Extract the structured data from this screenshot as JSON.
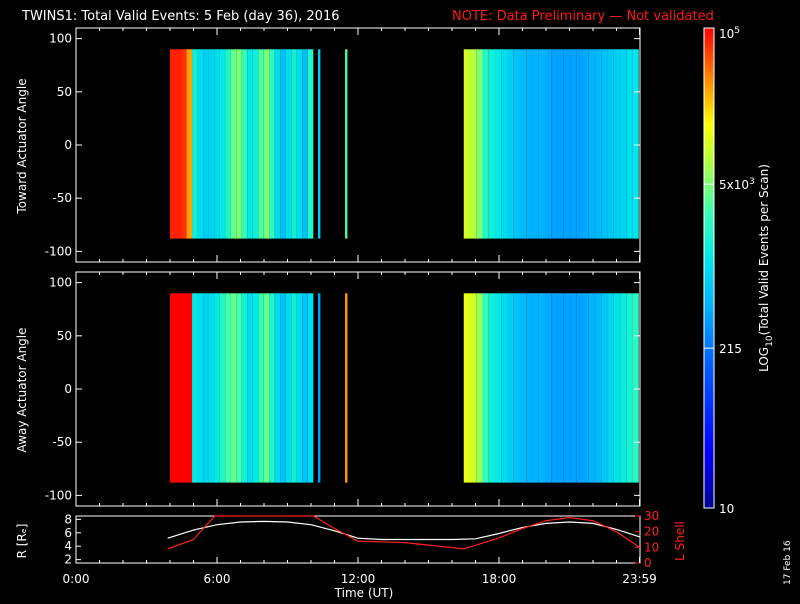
{
  "title": "TWINS1: Total Valid Events:  5 Feb (day  36), 2016",
  "note": "NOTE: Data Preliminary — Not validated",
  "stamp": "17 Feb 16",
  "colors": {
    "note": "#ff1a1a",
    "axis": "#ffffff",
    "background": "#000000",
    "r_line": "#ffffff",
    "lshell_line": "#ff2020"
  },
  "chart_data": [
    {
      "type": "heatmap",
      "ylabel": "Toward Actuator Angle",
      "ylim": [
        -110,
        110
      ],
      "yticks": [
        "100",
        "50",
        "0",
        "-50",
        "-100"
      ],
      "xlim": [
        0,
        24
      ],
      "segments": [
        {
          "t0": 4.0,
          "t1": 10.1,
          "level": [
            4.9,
            4.9,
            4.85,
            4.5,
            3.2,
            3.0,
            2.9,
            2.95,
            3.0,
            3.1,
            3.3,
            3.6,
            3.7,
            3.4,
            3.1,
            3.2,
            3.5,
            3.7,
            3.4,
            3.0,
            2.8,
            3.0,
            3.2,
            3.0,
            2.8,
            3.3
          ]
        },
        {
          "t0": 10.3,
          "t1": 10.4,
          "level": [
            2.9
          ]
        },
        {
          "t0": 11.45,
          "t1": 11.55,
          "level": [
            3.5
          ]
        },
        {
          "t0": 16.5,
          "t1": 23.95,
          "level": [
            4.0,
            3.9,
            3.7,
            3.3,
            3.2,
            3.1,
            3.0,
            2.9,
            2.8,
            2.75,
            2.7,
            2.7,
            2.7,
            2.65,
            2.6,
            2.6,
            2.6,
            2.6,
            2.6,
            2.65,
            2.7,
            2.75,
            2.8,
            2.85,
            2.9,
            2.95,
            3.0,
            3.05
          ]
        }
      ],
      "angle_range": [
        -88,
        90
      ]
    },
    {
      "type": "heatmap",
      "ylabel": "Away Actuator Angle",
      "ylim": [
        -110,
        110
      ],
      "yticks": [
        "100",
        "50",
        "0",
        "-50",
        "-100"
      ],
      "xlim": [
        0,
        24
      ],
      "segments": [
        {
          "t0": 4.0,
          "t1": 10.1,
          "level": [
            5.3,
            5.3,
            5.3,
            5.2,
            3.1,
            3.0,
            2.95,
            3.0,
            3.1,
            3.3,
            3.5,
            3.6,
            3.5,
            3.2,
            3.0,
            3.1,
            3.4,
            3.6,
            3.3,
            3.0,
            2.8,
            3.0,
            3.2,
            3.0,
            2.8,
            3.0
          ]
        },
        {
          "t0": 10.3,
          "t1": 10.4,
          "level": [
            2.6
          ]
        },
        {
          "t0": 11.45,
          "t1": 11.55,
          "level": [
            4.5
          ]
        },
        {
          "t0": 16.5,
          "t1": 23.95,
          "level": [
            4.1,
            4.0,
            3.8,
            3.4,
            3.2,
            3.1,
            3.0,
            2.9,
            2.8,
            2.75,
            2.7,
            2.7,
            2.7,
            2.65,
            2.6,
            2.6,
            2.6,
            2.6,
            2.6,
            2.65,
            2.7,
            2.75,
            2.85,
            2.95,
            3.05,
            3.15,
            3.25,
            3.35
          ]
        }
      ],
      "angle_range": [
        -88,
        90
      ]
    },
    {
      "type": "line",
      "ylabel": "R [Rₑ]",
      "y2label": "L Shell",
      "yticks": [
        "8",
        "6",
        "4",
        "2"
      ],
      "y2ticks": [
        "30",
        "20",
        "10",
        "0"
      ],
      "ylim": [
        1.5,
        8.5
      ],
      "y2lim": [
        0,
        30
      ],
      "xlabel": "Time (UT)",
      "xticks": [
        "0:00",
        "6:00",
        "12:00",
        "18:00",
        "23:59"
      ],
      "xtick_values": [
        0,
        6,
        12,
        18,
        23.98
      ],
      "series": [
        {
          "name": "R",
          "axis": "left",
          "x": [
            3.9,
            5,
            6,
            7,
            8,
            9,
            10,
            11,
            12,
            13,
            14,
            15,
            16,
            17,
            18,
            19,
            20,
            21,
            22,
            23,
            23.98
          ],
          "y": [
            5.2,
            6.4,
            7.2,
            7.6,
            7.7,
            7.6,
            7.2,
            6.3,
            5.2,
            5.0,
            5.0,
            5.0,
            5.0,
            5.1,
            5.9,
            6.8,
            7.4,
            7.6,
            7.4,
            6.5,
            5.4
          ]
        },
        {
          "name": "L Shell",
          "axis": "right",
          "x": [
            3.9,
            5,
            5.9,
            6.1,
            9.9,
            10.1,
            11,
            12,
            14,
            16.5,
            18,
            19,
            20,
            21,
            22,
            23,
            23.98
          ],
          "y": [
            9,
            15,
            30,
            30,
            30,
            30,
            22,
            14,
            13,
            9,
            16,
            22,
            27,
            29,
            27,
            20,
            10
          ]
        }
      ]
    }
  ],
  "colorbar": {
    "label_prefix": "LOG",
    "label_sub": "10",
    "label_suffix": "(Total Valid  Events per Scan)",
    "ticks": [
      {
        "text": "10",
        "level": 1.0
      },
      {
        "text": "215",
        "level": 2.332
      },
      {
        "text": "5x10",
        "sup": "3",
        "level": 3.699
      }
    ],
    "top_text": "10",
    "top_sup": "5",
    "range": [
      1,
      5
    ]
  }
}
